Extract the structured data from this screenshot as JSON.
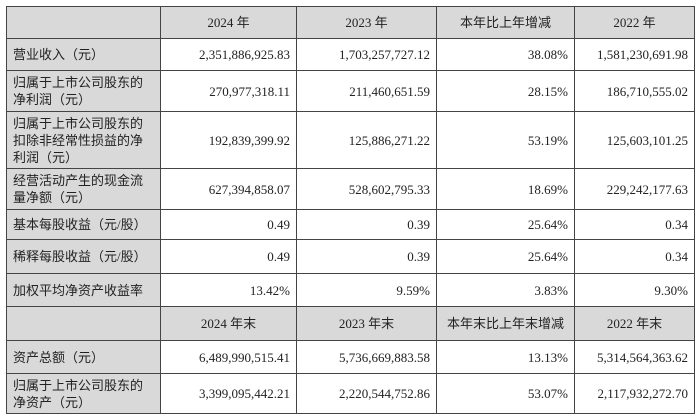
{
  "header1": [
    "",
    "2024 年",
    "2023 年",
    "本年比上年增减",
    "2022 年"
  ],
  "rows1": [
    {
      "label": "营业收入（元）",
      "values": [
        "2,351,886,925.83",
        "1,703,257,727.12",
        "38.08%",
        "1,581,230,691.98"
      ]
    },
    {
      "label": "归属于上市公司股东的净利润（元）",
      "values": [
        "270,977,318.11",
        "211,460,651.59",
        "28.15%",
        "186,710,555.02"
      ]
    },
    {
      "label": "归属于上市公司股东的扣除非经常性损益的净利润（元）",
      "values": [
        "192,839,399.92",
        "125,886,271.22",
        "53.19%",
        "125,603,101.25"
      ]
    },
    {
      "label": "经营活动产生的现金流量净额（元）",
      "values": [
        "627,394,858.07",
        "528,602,795.33",
        "18.69%",
        "229,242,177.63"
      ]
    },
    {
      "label": "基本每股收益（元/股）",
      "values": [
        "0.49",
        "0.39",
        "25.64%",
        "0.34"
      ]
    },
    {
      "label": "稀释每股收益（元/股）",
      "values": [
        "0.49",
        "0.39",
        "25.64%",
        "0.34"
      ]
    },
    {
      "label": "加权平均净资产收益率",
      "values": [
        "13.42%",
        "9.59%",
        "3.83%",
        "9.30%"
      ]
    }
  ],
  "header2": [
    "",
    "2024 年末",
    "2023 年末",
    "本年末比上年末增减",
    "2022 年末"
  ],
  "rows2": [
    {
      "label": "资产总额（元）",
      "values": [
        "6,489,990,515.41",
        "5,736,669,883.58",
        "13.13%",
        "5,314,564,363.62"
      ]
    },
    {
      "label": "归属于上市公司股东的净资产（元）",
      "values": [
        "3,399,095,442.21",
        "2,220,544,752.86",
        "53.07%",
        "2,117,932,272.70"
      ]
    }
  ],
  "colors": {
    "header_bg": "#d9d9d9",
    "border": "#444444"
  }
}
